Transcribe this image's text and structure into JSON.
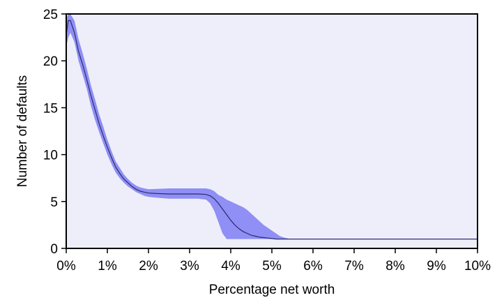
{
  "chart_data": {
    "type": "area",
    "title": "",
    "xlabel": "Percentage net worth",
    "ylabel": "Number of defaults",
    "xlim": [
      0,
      10
    ],
    "ylim": [
      0,
      25
    ],
    "xticks": [
      0,
      1,
      2,
      3,
      4,
      5,
      6,
      7,
      8,
      9,
      10
    ],
    "xtick_labels": [
      "0%",
      "1%",
      "2%",
      "3%",
      "4%",
      "5%",
      "6%",
      "7%",
      "8%",
      "9%",
      "10%"
    ],
    "yticks": [
      0,
      5,
      10,
      15,
      20,
      25
    ],
    "ytick_labels": [
      "0",
      "5",
      "10",
      "15",
      "20",
      "25"
    ],
    "grid": false,
    "legend": "none",
    "colors": {
      "band": "#8f8ff5",
      "mean_line": "#2b2b6e",
      "plot_background": "#eeeefa",
      "axis": "#000000"
    },
    "series": [
      {
        "x": [
          0.0,
          0.05,
          0.1,
          0.2,
          0.3,
          0.4,
          0.5,
          0.6,
          0.7,
          0.8,
          0.9,
          1.0,
          1.1,
          1.2,
          1.3,
          1.4,
          1.5,
          1.6,
          1.7,
          1.8,
          1.9,
          2.0,
          2.2,
          2.5,
          2.8,
          3.0,
          3.2,
          3.4,
          3.5,
          3.6,
          3.7,
          3.8,
          3.9,
          4.0,
          4.1,
          4.2,
          4.3,
          4.4,
          4.5,
          4.6,
          4.7,
          4.8,
          4.9,
          5.0,
          5.1,
          5.2,
          5.3,
          5.4,
          5.5,
          6.0,
          7.0,
          8.0,
          9.0,
          10.0
        ],
        "mean": [
          22.8,
          24.3,
          24.3,
          23.0,
          21.0,
          19.6,
          18.0,
          16.3,
          14.8,
          13.3,
          12.0,
          10.8,
          9.7,
          8.7,
          8.0,
          7.4,
          7.0,
          6.6,
          6.3,
          6.1,
          6.0,
          5.9,
          5.85,
          5.8,
          5.8,
          5.8,
          5.8,
          5.75,
          5.6,
          5.3,
          4.8,
          4.2,
          3.6,
          3.0,
          2.5,
          2.1,
          1.8,
          1.6,
          1.4,
          1.3,
          1.2,
          1.15,
          1.1,
          1.05,
          1.0,
          1.0,
          1.0,
          1.0,
          1.0,
          1.0,
          1.0,
          1.0,
          1.0,
          1.0
        ],
        "lower": [
          21.5,
          22.5,
          23.0,
          22.0,
          20.0,
          18.5,
          17.0,
          15.2,
          13.7,
          12.4,
          11.2,
          10.0,
          9.0,
          8.1,
          7.5,
          7.0,
          6.6,
          6.3,
          6.0,
          5.8,
          5.6,
          5.5,
          5.4,
          5.3,
          5.3,
          5.3,
          5.3,
          5.2,
          4.8,
          4.0,
          2.8,
          1.6,
          1.0,
          1.0,
          1.0,
          1.0,
          1.0,
          1.0,
          1.0,
          1.0,
          1.0,
          1.0,
          1.0,
          1.0,
          1.0,
          1.0,
          1.0,
          1.0,
          1.0,
          1.0,
          1.0,
          1.0,
          1.0,
          1.0
        ],
        "upper": [
          24.5,
          25.0,
          25.0,
          24.3,
          22.3,
          20.8,
          19.2,
          17.4,
          15.9,
          14.3,
          13.0,
          11.6,
          10.4,
          9.3,
          8.6,
          7.9,
          7.4,
          7.0,
          6.7,
          6.5,
          6.4,
          6.3,
          6.35,
          6.4,
          6.4,
          6.4,
          6.4,
          6.4,
          6.3,
          6.1,
          5.7,
          5.5,
          5.2,
          5.0,
          4.8,
          4.6,
          4.4,
          4.1,
          3.7,
          3.3,
          2.9,
          2.5,
          2.2,
          1.9,
          1.6,
          1.3,
          1.15,
          1.05,
          1.0,
          1.0,
          1.0,
          1.0,
          1.0,
          1.0
        ]
      }
    ]
  }
}
